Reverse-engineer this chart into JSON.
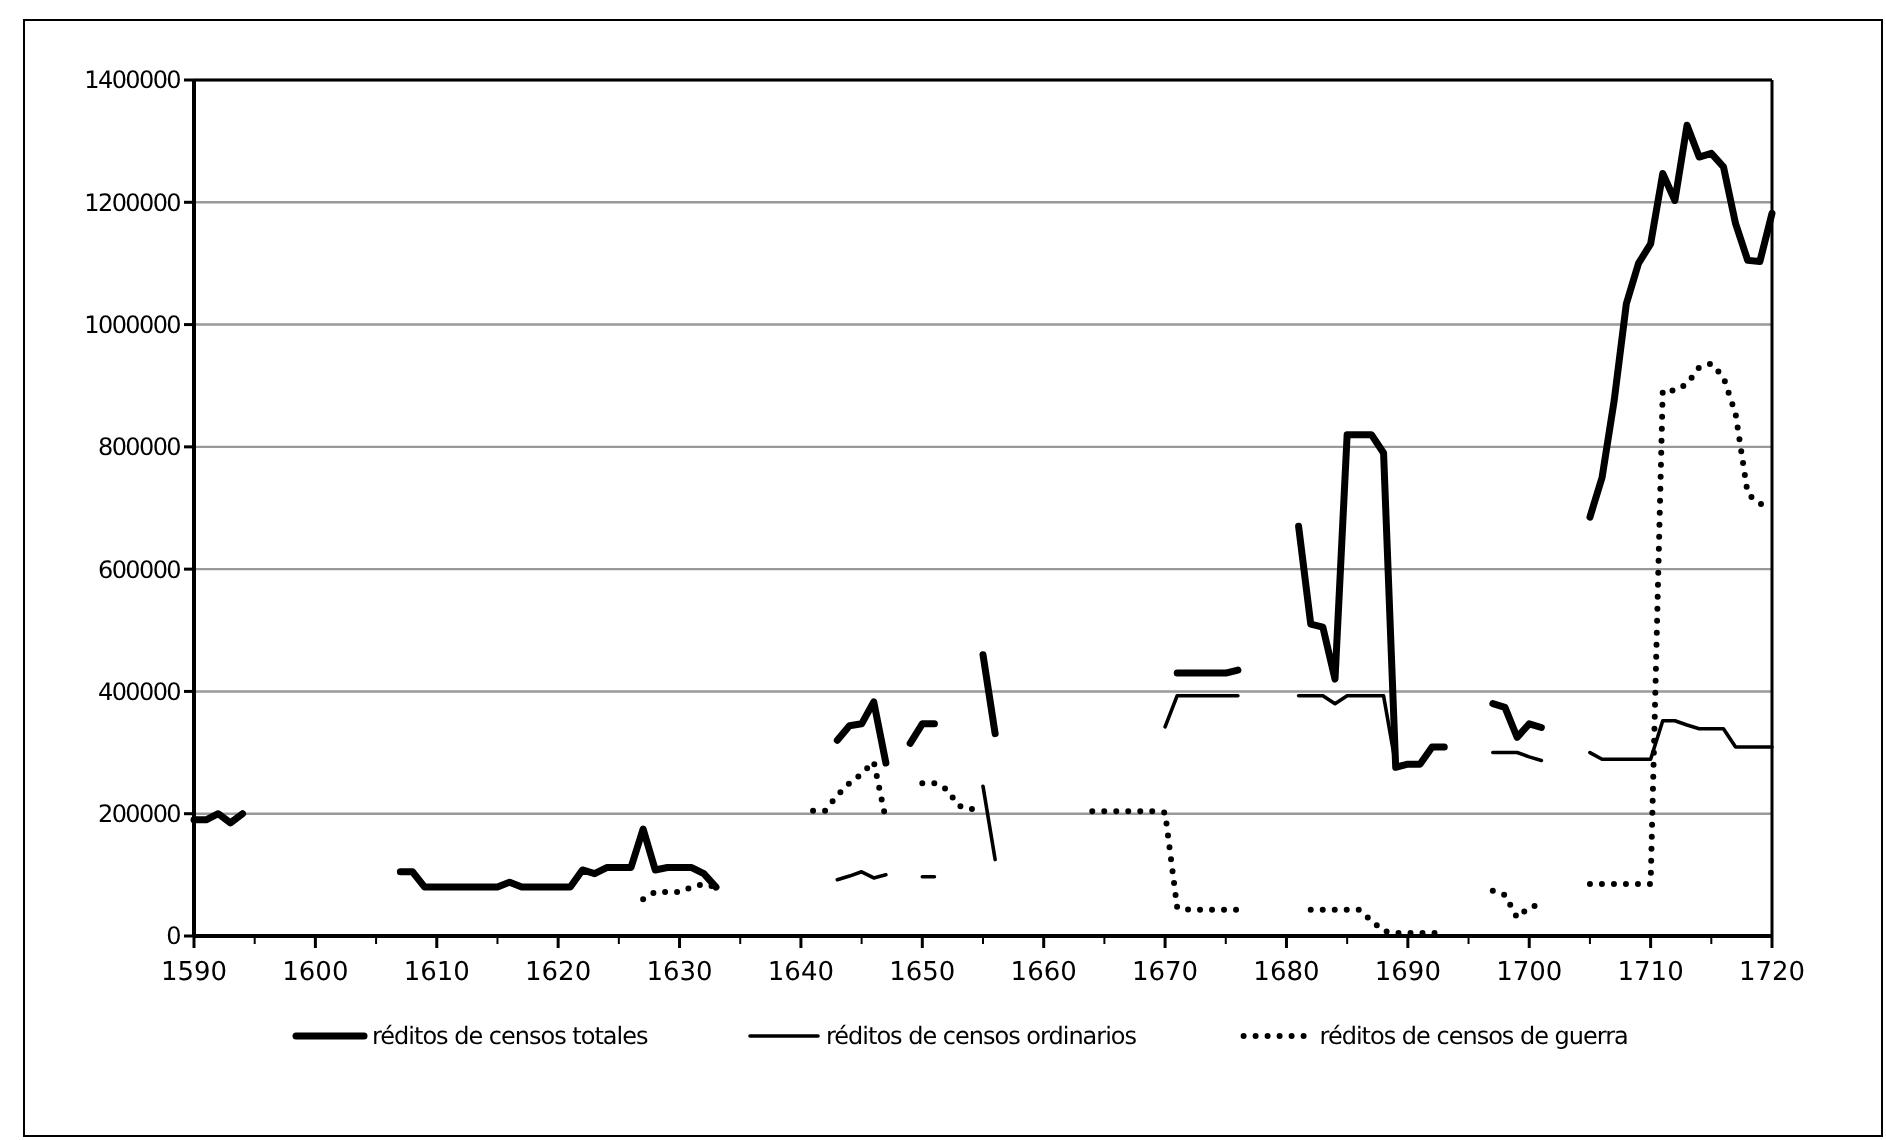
{
  "chart_data": {
    "type": "line",
    "x": [
      1590,
      1591,
      1592,
      1593,
      1594,
      1595,
      1596,
      1597,
      1598,
      1599,
      1600,
      1601,
      1602,
      1603,
      1604,
      1605,
      1606,
      1607,
      1608,
      1609,
      1610,
      1611,
      1612,
      1613,
      1614,
      1615,
      1616,
      1617,
      1618,
      1619,
      1620,
      1621,
      1622,
      1623,
      1624,
      1625,
      1626,
      1627,
      1628,
      1629,
      1630,
      1631,
      1632,
      1633,
      1634,
      1635,
      1636,
      1637,
      1638,
      1639,
      1640,
      1641,
      1642,
      1643,
      1644,
      1645,
      1646,
      1647,
      1648,
      1649,
      1650,
      1651,
      1652,
      1653,
      1654,
      1655,
      1656,
      1657,
      1658,
      1659,
      1660,
      1661,
      1662,
      1663,
      1664,
      1665,
      1666,
      1667,
      1668,
      1669,
      1670,
      1671,
      1672,
      1673,
      1674,
      1675,
      1676,
      1677,
      1678,
      1679,
      1680,
      1681,
      1682,
      1683,
      1684,
      1685,
      1686,
      1687,
      1688,
      1689,
      1690,
      1691,
      1692,
      1693,
      1694,
      1695,
      1696,
      1697,
      1698,
      1699,
      1700,
      1701,
      1702,
      1703,
      1704,
      1705,
      1706,
      1707,
      1708,
      1709,
      1710,
      1711,
      1712,
      1713,
      1714,
      1715,
      1716,
      1717,
      1718,
      1719,
      1720
    ],
    "series": [
      {
        "name": "réditos de censos totales",
        "color": "#000000",
        "line_style": "solid",
        "values": [
          190000,
          190000,
          200000,
          185000,
          200000,
          null,
          null,
          null,
          null,
          null,
          null,
          null,
          null,
          null,
          null,
          null,
          null,
          105000,
          105000,
          80000,
          80000,
          80000,
          80000,
          80000,
          80000,
          80000,
          88000,
          80000,
          80000,
          80000,
          80000,
          80000,
          108000,
          102000,
          112000,
          112000,
          112000,
          175000,
          108000,
          112000,
          112000,
          112000,
          102000,
          80000,
          null,
          null,
          null,
          null,
          null,
          null,
          null,
          null,
          null,
          320000,
          344000,
          347000,
          383000,
          283000,
          null,
          315000,
          347000,
          347000,
          null,
          null,
          null,
          460000,
          331000,
          null,
          null,
          null,
          null,
          null,
          null,
          null,
          null,
          null,
          null,
          null,
          null,
          null,
          null,
          430000,
          430000,
          430000,
          430000,
          430000,
          435000,
          null,
          null,
          null,
          null,
          670000,
          510000,
          505000,
          420000,
          820000,
          820000,
          820000,
          790000,
          276000,
          281000,
          281000,
          309000,
          309000,
          null,
          null,
          null,
          380000,
          374000,
          325000,
          347000,
          341000,
          null,
          null,
          null,
          685000,
          750000,
          876000,
          1034000,
          1100000,
          1132000,
          1247000,
          1203000,
          1326000,
          1274000,
          1280000,
          1258000,
          1165000,
          1105000,
          1103000,
          1182000
        ]
      },
      {
        "name": "réditos de censos ordinarios",
        "color": "#000000",
        "line_style": "solid",
        "values": [
          null,
          null,
          null,
          null,
          null,
          null,
          null,
          null,
          null,
          null,
          null,
          null,
          null,
          null,
          null,
          null,
          null,
          null,
          null,
          null,
          null,
          null,
          null,
          null,
          null,
          null,
          null,
          null,
          null,
          null,
          null,
          null,
          null,
          null,
          null,
          null,
          null,
          null,
          null,
          null,
          null,
          null,
          null,
          null,
          null,
          null,
          null,
          null,
          null,
          null,
          null,
          null,
          null,
          92000,
          98000,
          105000,
          95000,
          100000,
          null,
          null,
          97000,
          97000,
          null,
          null,
          null,
          245000,
          125000,
          null,
          null,
          null,
          null,
          null,
          null,
          null,
          null,
          null,
          null,
          null,
          null,
          null,
          342000,
          393000,
          393000,
          393000,
          393000,
          393000,
          393000,
          null,
          null,
          null,
          null,
          393000,
          393000,
          393000,
          380000,
          393000,
          393000,
          393000,
          393000,
          280000,
          null,
          null,
          null,
          null,
          null,
          null,
          null,
          300000,
          300000,
          300000,
          293000,
          287000,
          null,
          null,
          null,
          300000,
          289000,
          289000,
          289000,
          289000,
          289000,
          352000,
          352000,
          345000,
          339000,
          339000,
          339000,
          309000,
          309000,
          309000,
          309000
        ]
      },
      {
        "name": "réditos de censos de guerra",
        "color": "#000000",
        "line_style": "dotted",
        "values": [
          null,
          null,
          null,
          null,
          null,
          null,
          null,
          null,
          null,
          null,
          null,
          null,
          null,
          null,
          null,
          null,
          null,
          null,
          null,
          null,
          null,
          null,
          null,
          null,
          null,
          null,
          null,
          null,
          null,
          null,
          null,
          null,
          null,
          null,
          null,
          null,
          null,
          60000,
          72000,
          72000,
          72000,
          80000,
          85000,
          80000,
          null,
          null,
          null,
          null,
          null,
          null,
          null,
          205000,
          205000,
          230000,
          250000,
          265000,
          285000,
          190000,
          null,
          null,
          250000,
          250000,
          240000,
          213000,
          207000,
          213000,
          null,
          null,
          null,
          null,
          null,
          null,
          null,
          null,
          204000,
          204000,
          204000,
          204000,
          204000,
          204000,
          202000,
          46000,
          43000,
          43000,
          43000,
          43000,
          43000,
          null,
          null,
          null,
          null,
          null,
          43000,
          43000,
          43000,
          43000,
          43000,
          25000,
          8000,
          5000,
          5000,
          5000,
          5000,
          5000,
          null,
          null,
          null,
          74000,
          67000,
          30000,
          47000,
          52000,
          null,
          null,
          null,
          85000,
          85000,
          85000,
          85000,
          85000,
          85000,
          892000,
          892000,
          903000,
          930000,
          936000,
          914000,
          854000,
          723000,
          707000,
          701000
        ]
      }
    ],
    "xlim": [
      1590,
      1720
    ],
    "xticks": [
      1590,
      1600,
      1610,
      1620,
      1630,
      1640,
      1650,
      1660,
      1670,
      1680,
      1690,
      1700,
      1710,
      1720
    ],
    "ylim": [
      0,
      1400000
    ],
    "yticks": [
      0,
      200000,
      400000,
      600000,
      800000,
      1000000,
      1200000,
      1400000
    ],
    "grid": "y",
    "legend": "bottom",
    "marker": "none"
  }
}
